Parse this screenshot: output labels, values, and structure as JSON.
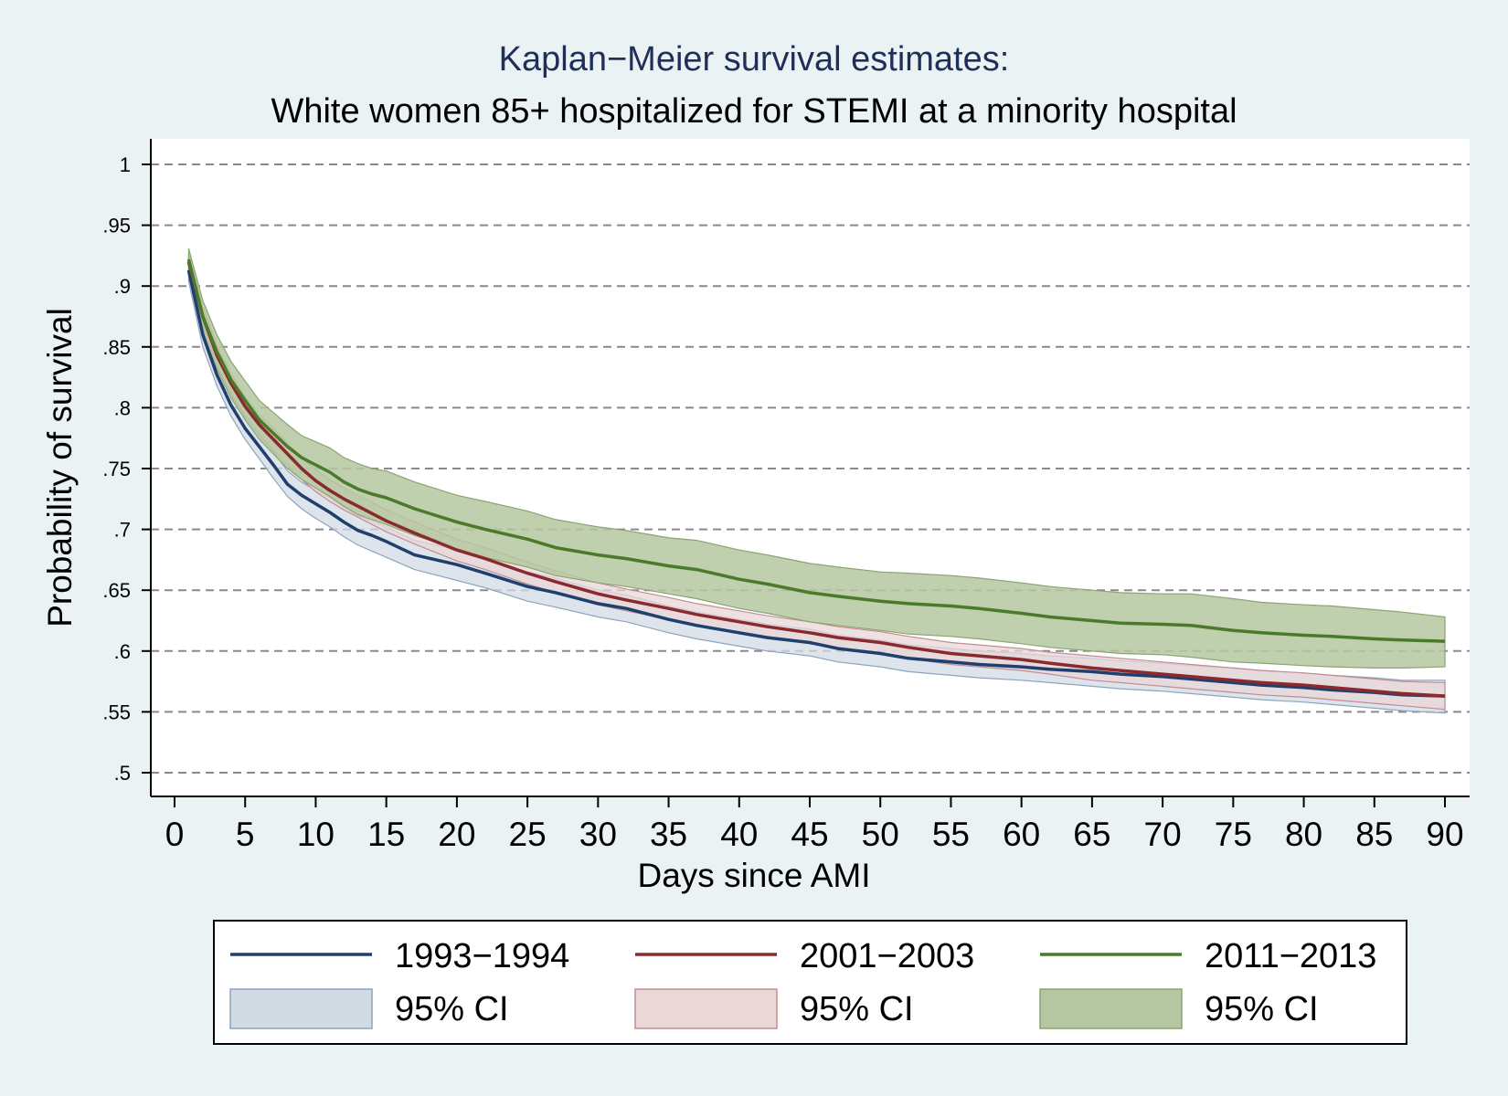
{
  "chart_data": {
    "type": "line",
    "title": "Kaplan−Meier survival estimates:",
    "subtitle": "White women 85+ hospitalized for STEMI at a minority hospital",
    "xlabel": "Days since AMI",
    "ylabel": "Probability of survival",
    "xlim": [
      0,
      90
    ],
    "ylim": [
      0.5,
      1
    ],
    "x_ticks": [
      "0",
      "5",
      "10",
      "15",
      "20",
      "25",
      "30",
      "35",
      "40",
      "45",
      "50",
      "55",
      "60",
      "65",
      "70",
      "75",
      "80",
      "85",
      "90"
    ],
    "x_tick_values": [
      0,
      5,
      10,
      15,
      20,
      25,
      30,
      35,
      40,
      45,
      50,
      55,
      60,
      65,
      70,
      75,
      80,
      85,
      90
    ],
    "y_ticks": [
      "1",
      ".95",
      ".9",
      ".85",
      ".8",
      ".75",
      ".7",
      ".65",
      ".6",
      ".55",
      ".5"
    ],
    "y_tick_values": [
      1,
      0.95,
      0.9,
      0.85,
      0.8,
      0.75,
      0.7,
      0.65,
      0.6,
      0.55,
      0.5
    ],
    "grid": true,
    "legend_position": "bottom",
    "series": [
      {
        "name": "1993−1994",
        "ci_label": "95% CI",
        "color": "#1f3f6e",
        "ci_fill": "#d1dbe4",
        "ci_stroke": "#8ea4bd",
        "x": [
          1,
          2,
          3,
          4,
          5,
          6,
          7,
          8,
          9,
          10,
          11,
          12,
          13,
          14,
          15,
          17,
          20,
          22,
          25,
          27,
          30,
          32,
          35,
          37,
          40,
          42,
          45,
          47,
          50,
          52,
          55,
          57,
          60,
          62,
          65,
          67,
          70,
          72,
          75,
          77,
          80,
          82,
          85,
          87,
          90
        ],
        "y": [
          0.913,
          0.86,
          0.827,
          0.802,
          0.783,
          0.768,
          0.753,
          0.737,
          0.728,
          0.721,
          0.714,
          0.706,
          0.699,
          0.695,
          0.69,
          0.679,
          0.671,
          0.664,
          0.653,
          0.648,
          0.639,
          0.635,
          0.626,
          0.621,
          0.615,
          0.611,
          0.607,
          0.602,
          0.598,
          0.594,
          0.591,
          0.589,
          0.587,
          0.585,
          0.583,
          0.581,
          0.579,
          0.577,
          0.574,
          0.572,
          0.57,
          0.568,
          0.566,
          0.564,
          0.563
        ],
        "ci_lower": [
          0.904,
          0.85,
          0.818,
          0.793,
          0.774,
          0.758,
          0.742,
          0.727,
          0.717,
          0.709,
          0.702,
          0.694,
          0.687,
          0.682,
          0.677,
          0.667,
          0.658,
          0.652,
          0.641,
          0.636,
          0.628,
          0.624,
          0.615,
          0.61,
          0.604,
          0.6,
          0.596,
          0.591,
          0.587,
          0.583,
          0.58,
          0.578,
          0.576,
          0.574,
          0.571,
          0.569,
          0.567,
          0.565,
          0.562,
          0.56,
          0.558,
          0.556,
          0.553,
          0.551,
          0.549
        ],
        "ci_upper": [
          0.922,
          0.87,
          0.836,
          0.811,
          0.792,
          0.778,
          0.764,
          0.748,
          0.739,
          0.732,
          0.726,
          0.718,
          0.711,
          0.707,
          0.702,
          0.691,
          0.683,
          0.676,
          0.665,
          0.66,
          0.65,
          0.646,
          0.637,
          0.632,
          0.626,
          0.622,
          0.618,
          0.613,
          0.609,
          0.605,
          0.602,
          0.6,
          0.598,
          0.596,
          0.594,
          0.592,
          0.59,
          0.588,
          0.586,
          0.584,
          0.582,
          0.58,
          0.578,
          0.576,
          0.576
        ]
      },
      {
        "name": "2001−2003",
        "ci_label": "95% CI",
        "color": "#8b2a2e",
        "ci_fill": "#ead7d8",
        "ci_stroke": "#c08e91",
        "x": [
          1,
          2,
          3,
          4,
          5,
          6,
          7,
          8,
          9,
          10,
          11,
          12,
          13,
          14,
          15,
          17,
          20,
          22,
          25,
          27,
          30,
          32,
          35,
          37,
          40,
          42,
          45,
          47,
          50,
          52,
          55,
          57,
          60,
          62,
          65,
          67,
          70,
          72,
          75,
          77,
          80,
          82,
          85,
          87,
          90
        ],
        "y": [
          0.92,
          0.875,
          0.843,
          0.82,
          0.801,
          0.786,
          0.774,
          0.762,
          0.75,
          0.74,
          0.732,
          0.725,
          0.719,
          0.713,
          0.707,
          0.697,
          0.683,
          0.676,
          0.664,
          0.657,
          0.647,
          0.642,
          0.635,
          0.63,
          0.624,
          0.62,
          0.615,
          0.611,
          0.607,
          0.603,
          0.598,
          0.596,
          0.593,
          0.59,
          0.586,
          0.584,
          0.581,
          0.579,
          0.576,
          0.574,
          0.572,
          0.57,
          0.567,
          0.565,
          0.563
        ],
        "ci_lower": [
          0.913,
          0.867,
          0.835,
          0.812,
          0.793,
          0.778,
          0.765,
          0.753,
          0.741,
          0.731,
          0.723,
          0.716,
          0.71,
          0.704,
          0.698,
          0.688,
          0.674,
          0.667,
          0.655,
          0.648,
          0.638,
          0.633,
          0.626,
          0.621,
          0.615,
          0.611,
          0.606,
          0.602,
          0.598,
          0.594,
          0.589,
          0.587,
          0.584,
          0.581,
          0.576,
          0.574,
          0.571,
          0.569,
          0.566,
          0.564,
          0.562,
          0.56,
          0.557,
          0.555,
          0.552
        ],
        "ci_upper": [
          0.927,
          0.883,
          0.851,
          0.828,
          0.809,
          0.794,
          0.783,
          0.771,
          0.759,
          0.749,
          0.741,
          0.734,
          0.728,
          0.722,
          0.716,
          0.706,
          0.692,
          0.685,
          0.673,
          0.666,
          0.656,
          0.651,
          0.644,
          0.639,
          0.633,
          0.629,
          0.624,
          0.62,
          0.616,
          0.612,
          0.607,
          0.605,
          0.602,
          0.599,
          0.596,
          0.594,
          0.591,
          0.589,
          0.586,
          0.584,
          0.582,
          0.58,
          0.577,
          0.575,
          0.574
        ]
      },
      {
        "name": "2011−2013",
        "ci_label": "95% CI",
        "color": "#4b7a2b",
        "ci_fill": "#b5c7a0",
        "ci_stroke": "#8aa472",
        "x": [
          1,
          2,
          3,
          4,
          5,
          6,
          7,
          8,
          9,
          10,
          11,
          12,
          13,
          14,
          15,
          17,
          20,
          22,
          25,
          27,
          30,
          32,
          35,
          37,
          40,
          42,
          45,
          47,
          50,
          52,
          55,
          57,
          60,
          62,
          65,
          67,
          70,
          72,
          75,
          77,
          80,
          82,
          85,
          87,
          90
        ],
        "y": [
          0.922,
          0.875,
          0.846,
          0.823,
          0.806,
          0.79,
          0.779,
          0.768,
          0.759,
          0.753,
          0.747,
          0.739,
          0.733,
          0.729,
          0.726,
          0.717,
          0.706,
          0.7,
          0.692,
          0.685,
          0.679,
          0.676,
          0.67,
          0.667,
          0.659,
          0.655,
          0.648,
          0.645,
          0.641,
          0.639,
          0.637,
          0.635,
          0.631,
          0.628,
          0.625,
          0.623,
          0.622,
          0.621,
          0.617,
          0.615,
          0.613,
          0.612,
          0.61,
          0.609,
          0.608
        ],
        "ci_lower": [
          0.912,
          0.862,
          0.832,
          0.808,
          0.79,
          0.774,
          0.762,
          0.75,
          0.741,
          0.734,
          0.727,
          0.719,
          0.712,
          0.708,
          0.704,
          0.695,
          0.684,
          0.677,
          0.669,
          0.662,
          0.656,
          0.653,
          0.647,
          0.643,
          0.635,
          0.631,
          0.624,
          0.621,
          0.617,
          0.614,
          0.612,
          0.61,
          0.606,
          0.603,
          0.6,
          0.598,
          0.597,
          0.595,
          0.591,
          0.59,
          0.588,
          0.587,
          0.586,
          0.586,
          0.587
        ],
        "ci_upper": [
          0.931,
          0.888,
          0.86,
          0.838,
          0.822,
          0.806,
          0.796,
          0.786,
          0.777,
          0.772,
          0.767,
          0.759,
          0.754,
          0.75,
          0.748,
          0.739,
          0.728,
          0.723,
          0.715,
          0.708,
          0.702,
          0.699,
          0.693,
          0.691,
          0.683,
          0.679,
          0.672,
          0.669,
          0.665,
          0.664,
          0.662,
          0.66,
          0.656,
          0.653,
          0.65,
          0.648,
          0.647,
          0.647,
          0.643,
          0.64,
          0.638,
          0.637,
          0.634,
          0.632,
          0.628
        ]
      }
    ]
  }
}
